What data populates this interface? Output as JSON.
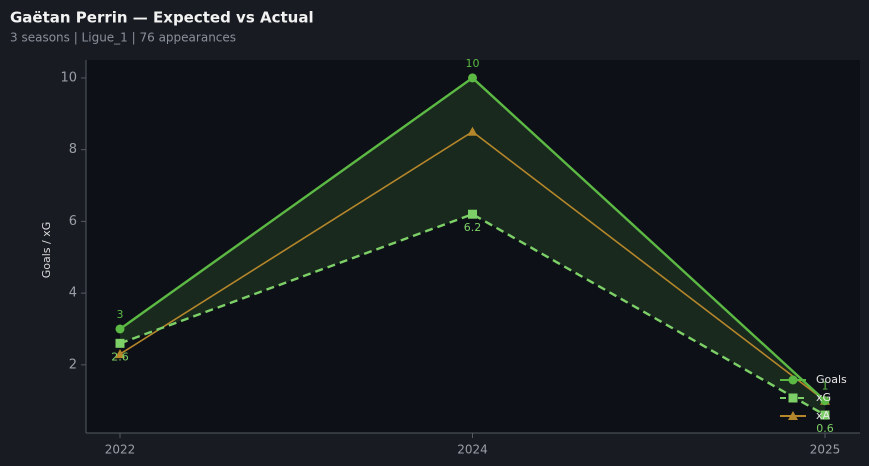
{
  "chart_data": {
    "type": "line",
    "title": "Gaëtan Perrin — Expected vs Actual",
    "subtitle": "3 seasons | Ligue_1 | 76 appearances",
    "y_label": "Goals / xG",
    "categories": [
      "2022",
      "2024",
      "2025"
    ],
    "series": [
      {
        "name": "Goals",
        "color": "#5cb944",
        "values": [
          3,
          10,
          1
        ],
        "marker": "circle",
        "dash": false,
        "label_position": "above"
      },
      {
        "name": "xG",
        "color": "#7dd067",
        "values": [
          2.6,
          6.2,
          0.6
        ],
        "marker": "square",
        "dash": true,
        "label_position": "below"
      },
      {
        "name": "xA",
        "color": "#b5862a",
        "values": [
          2.3,
          8.5,
          1.0
        ],
        "marker": "triangle",
        "dash": false
      }
    ],
    "fill_between": [
      0,
      1
    ],
    "fill_color": "#1b2c1f",
    "ylim": [
      0.1,
      10.5
    ],
    "yticks": [
      2,
      4,
      6,
      8,
      10
    ],
    "legend": "lower-right"
  }
}
